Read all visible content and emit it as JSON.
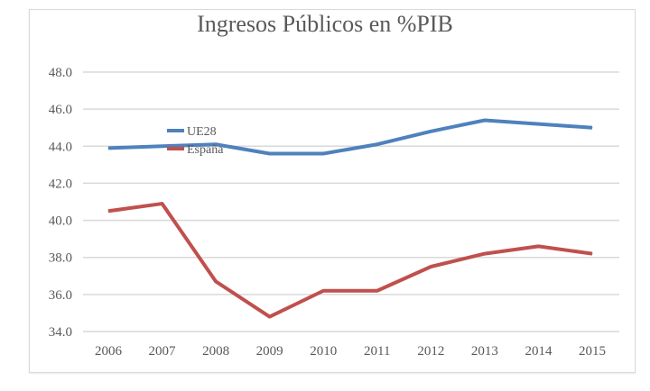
{
  "chart_data": {
    "type": "line",
    "title": "Ingresos Públicos en %PIB",
    "xlabel": "",
    "ylabel": "",
    "categories": [
      "2006",
      "2007",
      "2008",
      "2009",
      "2010",
      "2011",
      "2012",
      "2013",
      "2014",
      "2015"
    ],
    "y_ticks": [
      "34.0",
      "36.0",
      "38.0",
      "40.0",
      "42.0",
      "44.0",
      "46.0",
      "48.0"
    ],
    "ylim": [
      34,
      48
    ],
    "grid": true,
    "legend_position": "upper-left inside plot",
    "series": [
      {
        "name": "UE28",
        "color": "#4f81bd",
        "values": [
          43.9,
          44.0,
          44.1,
          43.6,
          43.6,
          44.1,
          44.8,
          45.4,
          45.2,
          45.0
        ]
      },
      {
        "name": "España",
        "color": "#c0504d",
        "values": [
          40.5,
          40.9,
          36.7,
          34.8,
          36.2,
          36.2,
          37.5,
          38.2,
          38.6,
          38.2
        ]
      }
    ]
  }
}
